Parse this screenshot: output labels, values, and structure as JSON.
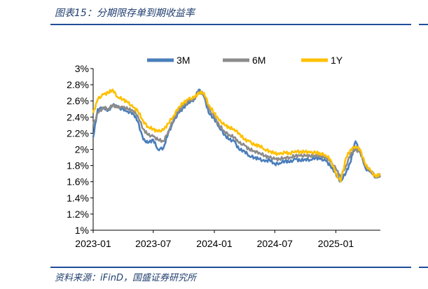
{
  "header": {
    "title": "图表15：分期限存单到期收益率"
  },
  "footer": {
    "source": "资料来源：iFinD，国盛证券研究所"
  },
  "colors": {
    "3M": "#4a7ebb",
    "6M": "#8c8c8c",
    "1Y": "#ffc000",
    "rule": "#1f4e99",
    "text": "#1f3d6e"
  },
  "chart_data": {
    "type": "line",
    "title": "",
    "xlabel": "",
    "ylabel": "",
    "x_ticks": [
      "2023-01",
      "2023-07",
      "2024-01",
      "2024-07",
      "2025-01"
    ],
    "y_ticks": [
      "1%",
      "1.2%",
      "1.4%",
      "1.6%",
      "1.8%",
      "2%",
      "2.2%",
      "2.4%",
      "2.6%",
      "2.8%",
      "3%"
    ],
    "ylim": [
      1.0,
      3.0
    ],
    "xlim": [
      "2023-01-01",
      "2025-05-15"
    ],
    "legend_position": "top",
    "grid": false,
    "x": [
      "2023-01-01",
      "2023-01-15",
      "2023-02-01",
      "2023-02-15",
      "2023-03-01",
      "2023-03-15",
      "2023-04-01",
      "2023-04-15",
      "2023-05-01",
      "2023-05-15",
      "2023-06-01",
      "2023-06-15",
      "2023-07-01",
      "2023-07-15",
      "2023-08-01",
      "2023-08-15",
      "2023-09-01",
      "2023-09-15",
      "2023-10-01",
      "2023-10-15",
      "2023-11-01",
      "2023-11-15",
      "2023-12-01",
      "2023-12-15",
      "2024-01-01",
      "2024-01-15",
      "2024-02-01",
      "2024-02-15",
      "2024-03-01",
      "2024-03-15",
      "2024-04-01",
      "2024-04-15",
      "2024-05-01",
      "2024-05-15",
      "2024-06-01",
      "2024-06-15",
      "2024-07-01",
      "2024-07-15",
      "2024-08-01",
      "2024-08-15",
      "2024-09-01",
      "2024-09-15",
      "2024-10-01",
      "2024-10-15",
      "2024-11-01",
      "2024-11-15",
      "2024-12-01",
      "2024-12-15",
      "2025-01-01",
      "2025-01-15",
      "2025-02-01",
      "2025-02-15",
      "2025-03-01",
      "2025-03-15",
      "2025-04-01",
      "2025-04-15",
      "2025-05-01",
      "2025-05-15"
    ],
    "series": [
      {
        "name": "3M",
        "values": [
          2.15,
          2.5,
          2.52,
          2.48,
          2.55,
          2.52,
          2.5,
          2.47,
          2.45,
          2.35,
          2.12,
          2.08,
          2.12,
          2.0,
          2.02,
          2.2,
          2.35,
          2.45,
          2.52,
          2.58,
          2.62,
          2.74,
          2.65,
          2.45,
          2.38,
          2.28,
          2.18,
          2.12,
          2.1,
          2.0,
          1.98,
          1.92,
          1.9,
          1.88,
          1.85,
          1.87,
          1.82,
          1.83,
          1.86,
          1.84,
          1.88,
          1.86,
          1.88,
          1.87,
          1.9,
          1.88,
          1.86,
          1.8,
          1.7,
          1.6,
          1.72,
          1.85,
          2.1,
          1.97,
          1.76,
          1.74,
          1.65,
          1.7
        ]
      },
      {
        "name": "6M",
        "values": [
          2.3,
          2.45,
          2.52,
          2.5,
          2.55,
          2.52,
          2.52,
          2.5,
          2.48,
          2.42,
          2.25,
          2.18,
          2.16,
          2.12,
          2.1,
          2.22,
          2.38,
          2.48,
          2.54,
          2.6,
          2.62,
          2.72,
          2.68,
          2.5,
          2.4,
          2.3,
          2.22,
          2.18,
          2.15,
          2.08,
          2.05,
          2.0,
          1.98,
          1.96,
          1.92,
          1.9,
          1.88,
          1.88,
          1.9,
          1.9,
          1.92,
          1.92,
          1.92,
          1.92,
          1.93,
          1.92,
          1.9,
          1.85,
          1.76,
          1.66,
          1.8,
          1.95,
          2.0,
          1.96,
          1.78,
          1.74,
          1.66,
          1.68
        ]
      },
      {
        "name": "1Y",
        "values": [
          2.45,
          2.62,
          2.68,
          2.7,
          2.74,
          2.65,
          2.62,
          2.58,
          2.52,
          2.48,
          2.35,
          2.28,
          2.25,
          2.22,
          2.24,
          2.32,
          2.42,
          2.52,
          2.58,
          2.62,
          2.64,
          2.7,
          2.7,
          2.55,
          2.45,
          2.36,
          2.3,
          2.27,
          2.25,
          2.2,
          2.12,
          2.1,
          2.05,
          2.05,
          2.0,
          1.98,
          1.95,
          1.94,
          1.96,
          1.95,
          1.98,
          1.97,
          1.97,
          1.96,
          1.96,
          1.95,
          1.93,
          1.88,
          1.7,
          1.6,
          1.9,
          2.0,
          2.04,
          2.0,
          1.8,
          1.74,
          1.66,
          1.7
        ]
      }
    ]
  }
}
